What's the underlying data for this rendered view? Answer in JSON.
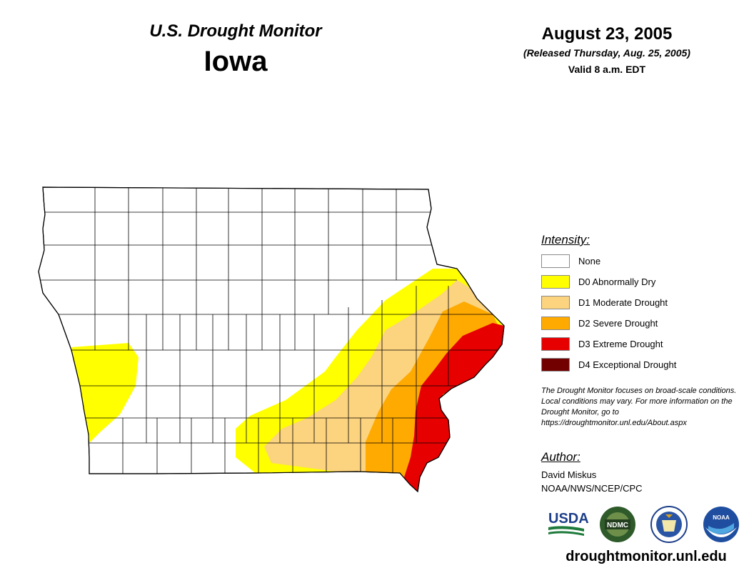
{
  "header": {
    "title": "U.S. Drought Monitor",
    "state": "Iowa",
    "date": "August 23, 2005",
    "released": "(Released Thursday, Aug. 25, 2005)",
    "valid": "Valid 8 a.m. EDT"
  },
  "legend": {
    "title": "Intensity:",
    "items": [
      {
        "label": "None",
        "color": "#ffffff"
      },
      {
        "label": "D0 Abnormally Dry",
        "color": "#ffff00"
      },
      {
        "label": "D1 Moderate Drought",
        "color": "#fcd37f"
      },
      {
        "label": "D2 Severe Drought",
        "color": "#ffaa00"
      },
      {
        "label": "D3 Extreme Drought",
        "color": "#e60000"
      },
      {
        "label": "D4 Exceptional Drought",
        "color": "#730000"
      }
    ]
  },
  "note": "The Drought Monitor focuses on broad-scale conditions. Local conditions may vary. For more information on the Drought Monitor, go to https://droughtmonitor.unl.edu/About.aspx",
  "author": {
    "title": "Author:",
    "name": "David Miskus",
    "org": "NOAA/NWS/NCEP/CPC"
  },
  "logos": [
    {
      "name": "usda-logo",
      "text": "USDA"
    },
    {
      "name": "ndmc-logo",
      "text": "NDMC"
    },
    {
      "name": "doc-seal",
      "text": ""
    },
    {
      "name": "noaa-logo",
      "text": "NOAA"
    }
  ],
  "website": "droughtmonitor.unl.edu"
}
